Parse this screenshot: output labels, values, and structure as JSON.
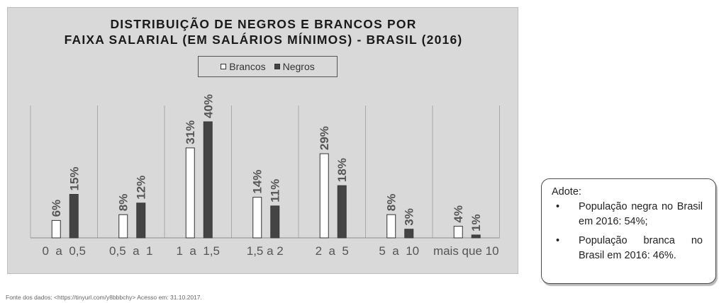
{
  "chart_data": {
    "type": "bar",
    "title_lines": [
      "DISTRIBUIÇÃO DE NEGROS E BRANCOS POR",
      "FAIXA SALARIAL  (EM SALÁRIOS MÍNIMOS) - BRASIL (2016)"
    ],
    "categories": [
      "0  a  0,5",
      "0,5  a  1",
      "1  a  1,5",
      "1,5 a 2",
      "2  a  5",
      "5  a  10",
      "mais que 10"
    ],
    "series": [
      {
        "name": "Brancos",
        "values": [
          6,
          8,
          31,
          14,
          29,
          8,
          4
        ],
        "labels": [
          "6%",
          "8%",
          "31%",
          "14%",
          "29%",
          "8%",
          "4%"
        ],
        "color": "#ffffff"
      },
      {
        "name": "Negros",
        "values": [
          15,
          12,
          40,
          11,
          18,
          3,
          1
        ],
        "labels": [
          "15%",
          "12%",
          "40%",
          "11%",
          "18%",
          "3%",
          "1%"
        ],
        "color": "#444444"
      }
    ],
    "ylim": [
      0,
      45
    ],
    "grid": true,
    "legend": "top-center"
  },
  "source_note": "Fonte dos dados: <https://tinyurl.com/y8bbbchy> Acesso em: 31.10.2017.",
  "adote": {
    "title": "Adote:",
    "items": [
      "População negra no Brasil em 2016: 54%;",
      "População branca no Brasil em 2016: 46%."
    ],
    "bullet": "•"
  }
}
